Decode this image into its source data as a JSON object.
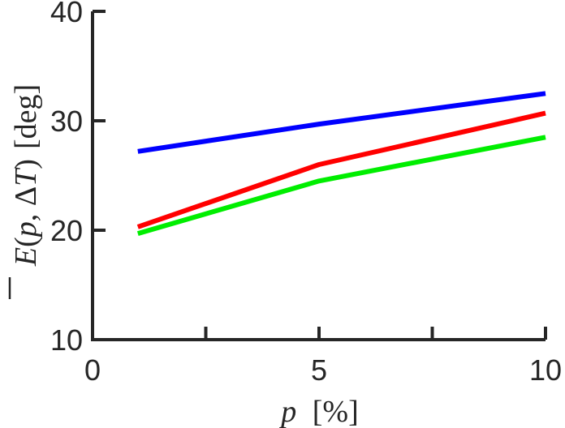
{
  "chart_data": {
    "type": "line",
    "xlabel": {
      "var": "p",
      "unit": "[%]"
    },
    "ylabel": {
      "e": "E",
      "open": "(",
      "p": "p",
      "comma": ", ",
      "delta": "Δ",
      "t": "T",
      "close": ")",
      "unit": "[deg]"
    },
    "xlim": [
      0,
      10
    ],
    "ylim": [
      10,
      40
    ],
    "xticks": [
      0,
      5,
      10
    ],
    "xticks_minor": [
      2.5,
      7.5
    ],
    "yticks": [
      10,
      20,
      30,
      40
    ],
    "grid": false,
    "legend": "none",
    "x": [
      1,
      5,
      10
    ],
    "series": [
      {
        "color": "#0000ff",
        "values": [
          27.2,
          29.7,
          32.5
        ]
      },
      {
        "color": "#ff0000",
        "values": [
          20.3,
          26.0,
          30.7
        ]
      },
      {
        "color": "#00ee00",
        "values": [
          19.7,
          24.5,
          28.5
        ]
      }
    ]
  }
}
